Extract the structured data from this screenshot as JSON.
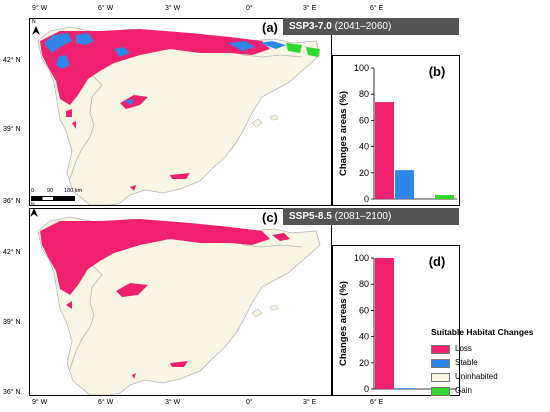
{
  "axes": {
    "lon_ticks": [
      "9° W",
      "6° W",
      "3° W",
      "0°",
      "3° E",
      "6° E"
    ],
    "lat_ticks_top": [
      "42° N",
      "39° N",
      "36° N"
    ],
    "lat_ticks_bottom": [
      "42° N",
      "39° N",
      "36° N"
    ]
  },
  "panels": [
    {
      "label": "(a)",
      "scenario": "SSP3-7.0",
      "period": "(2041–2060)"
    },
    {
      "label": "(c)",
      "scenario": "SSP5-8.5",
      "period": "(2081–2100)"
    }
  ],
  "scalebar": {
    "ticks": [
      "0",
      "90",
      "180 km"
    ]
  },
  "north_label": "N",
  "chart_data": [
    {
      "type": "bar",
      "label": "(b)",
      "ylabel": "Changes areas (%)",
      "ylim": [
        0,
        100
      ],
      "yticks": [
        "100",
        "80",
        "60",
        "40",
        "20",
        "0"
      ],
      "categories": [
        "Loss",
        "Stable",
        "Uninhabited",
        "Gain"
      ],
      "values": [
        74,
        22,
        0,
        3
      ]
    },
    {
      "type": "bar",
      "label": "(d)",
      "ylabel": "Changes areas (%)",
      "ylim": [
        0,
        100
      ],
      "yticks": [
        "100",
        "80",
        "60",
        "40",
        "20",
        "0"
      ],
      "categories": [
        "Loss",
        "Stable",
        "Uninhabited",
        "Gain"
      ],
      "values": [
        100,
        0.5,
        0,
        0
      ]
    }
  ],
  "legend": {
    "title": "Suitable Habitat Changes",
    "items": [
      {
        "label": "Loss",
        "color": "#f0206e"
      },
      {
        "label": "Stable",
        "color": "#2e86e8"
      },
      {
        "label": "Uninhabited",
        "color": "#f9f5e3"
      },
      {
        "label": "Gain",
        "color": "#2fd82f"
      }
    ]
  },
  "colors": {
    "land": "#f9f5e3",
    "border": "#b7b7b7",
    "loss": "#f0206e",
    "stable": "#2e86e8",
    "gain": "#2fd82f"
  }
}
